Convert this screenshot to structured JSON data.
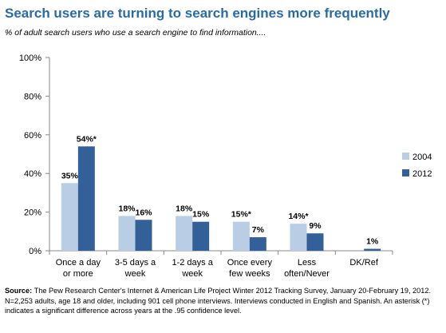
{
  "chart_data": {
    "type": "bar",
    "title": "Search users are turning to search engines more frequently",
    "subtitle": "% of adult search users who use a search engine to find information....",
    "categories": [
      "Once a day or more",
      "3-5 days a week",
      "1-2 days a week",
      "Once every few weeks",
      "Less often/Never",
      "DK/Ref"
    ],
    "series": [
      {
        "name": "2004",
        "color": "#b9cde5",
        "values": [
          35,
          18,
          18,
          15,
          14,
          null
        ],
        "value_labels": [
          "35%",
          "18%",
          "18%",
          "15%*",
          "14%*",
          null
        ]
      },
      {
        "name": "2012",
        "color": "#34609a",
        "values": [
          54,
          16,
          15,
          7,
          9,
          1
        ],
        "value_labels": [
          "54%*",
          "16%",
          "15%",
          "7%",
          "9%",
          "1%"
        ]
      }
    ],
    "ylim": [
      0,
      100
    ],
    "yticks": [
      {
        "value": 0,
        "label": "0%"
      },
      {
        "value": 20,
        "label": "20%"
      },
      {
        "value": 40,
        "label": "40%"
      },
      {
        "value": 60,
        "label": "60%"
      },
      {
        "value": 80,
        "label": "80%"
      },
      {
        "value": 100,
        "label": "100%"
      }
    ],
    "grid": false,
    "legend": "right",
    "source_label": "Source:",
    "source": "The Pew Research Center's Internet & American Life Project Winter 2012 Tracking Survey, January 20-February 19, 2012. N=2,253 adults, age 18 and older, including 901 cell phone interviews. Interviews conducted in English and Spanish. An asterisk (*) indicates a significant difference across years at the .95 confidence level."
  }
}
